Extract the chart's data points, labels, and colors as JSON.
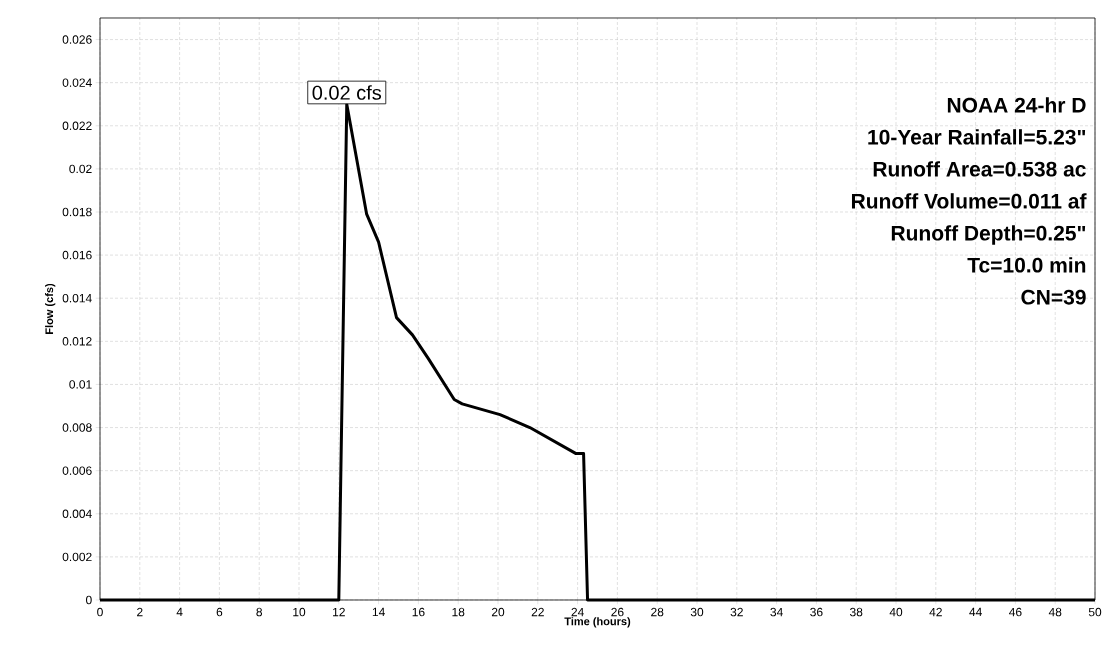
{
  "chart_data": {
    "type": "line",
    "xlabel": "Time  (hours)",
    "ylabel": "Flow  (cfs)",
    "x": [
      0,
      12.0,
      12.4,
      13.4,
      14.0,
      14.9,
      15.7,
      16.5,
      17.8,
      18.2,
      20.1,
      21.6,
      23.9,
      24.3,
      24.5,
      50
    ],
    "series": [
      {
        "color": "#000000",
        "values": [
          0,
          0,
          0.023,
          0.0179,
          0.0166,
          0.0131,
          0.0123,
          0.0112,
          0.0093,
          0.0091,
          0.0086,
          0.008,
          0.0068,
          0.0068,
          0,
          0
        ]
      }
    ],
    "xlim": [
      0,
      50
    ],
    "ylim": [
      0,
      0.027
    ],
    "xticks": [
      0,
      2,
      4,
      6,
      8,
      10,
      12,
      14,
      16,
      18,
      20,
      22,
      24,
      26,
      28,
      30,
      32,
      34,
      36,
      38,
      40,
      42,
      44,
      46,
      48,
      50
    ],
    "yticks": [
      0,
      0.002,
      0.004,
      0.006,
      0.008,
      0.01,
      0.012,
      0.014,
      0.016,
      0.018,
      0.02,
      0.022,
      0.024,
      0.026
    ],
    "grid": true,
    "marker": "none",
    "line_style": "solid",
    "annotations": [
      {
        "text": "0.02 cfs",
        "x": 12.4,
        "y": 0.023
      },
      "NOAA 24-hr D",
      "10-Year Rainfall=5.23\"",
      "Runoff Area=0.538 ac",
      "Runoff Volume=0.011 af",
      "Runoff Depth=0.25\"",
      "Tc=10.0 min",
      "CN=39"
    ]
  }
}
